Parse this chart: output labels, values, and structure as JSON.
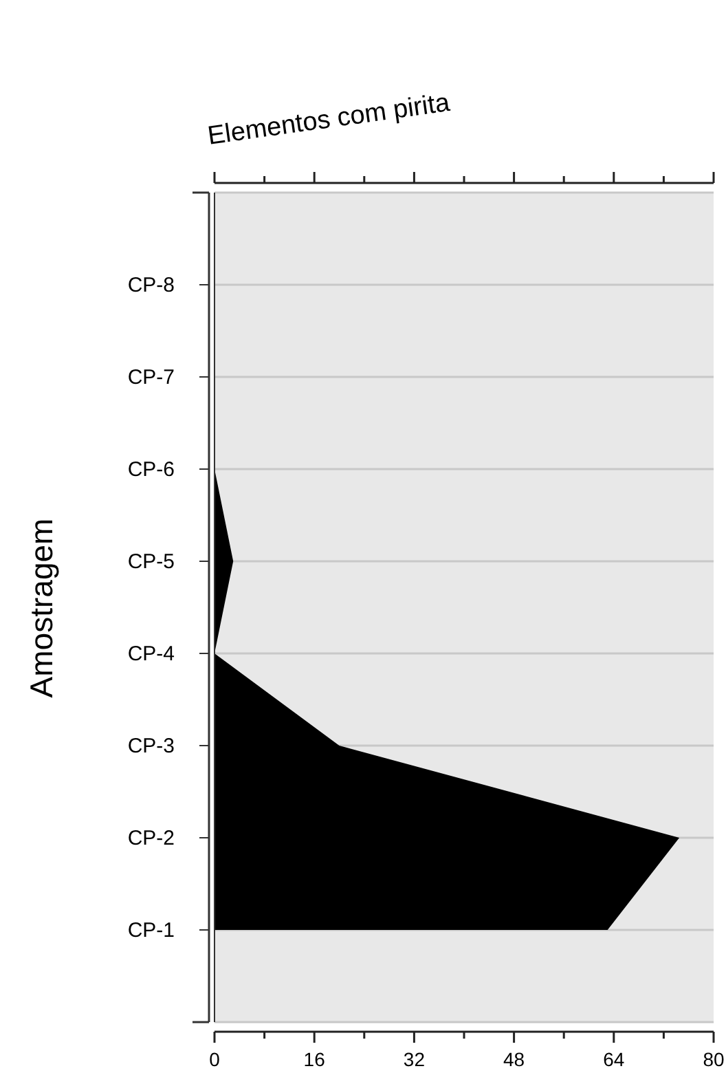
{
  "chart_data": {
    "type": "area",
    "orientation": "horizontal",
    "title": "Elementos com pirita",
    "ylabel": "Amostragem",
    "categories": [
      "CP-8",
      "CP-7",
      "CP-6",
      "CP-5",
      "CP-4",
      "CP-3",
      "CP-2",
      "CP-1"
    ],
    "values": [
      0,
      0,
      0,
      3,
      0,
      20,
      74.5,
      63
    ],
    "color": "#000000",
    "xlim": [
      0,
      80
    ],
    "xticks": [
      0,
      {
        "value": 8,
        "label": null
      },
      16,
      {
        "value": 24,
        "label": null
      },
      32,
      {
        "value": 40,
        "label": null
      },
      48,
      {
        "value": 56,
        "label": null
      },
      64,
      {
        "value": 72,
        "label": null
      },
      80
    ],
    "grid": "y"
  }
}
